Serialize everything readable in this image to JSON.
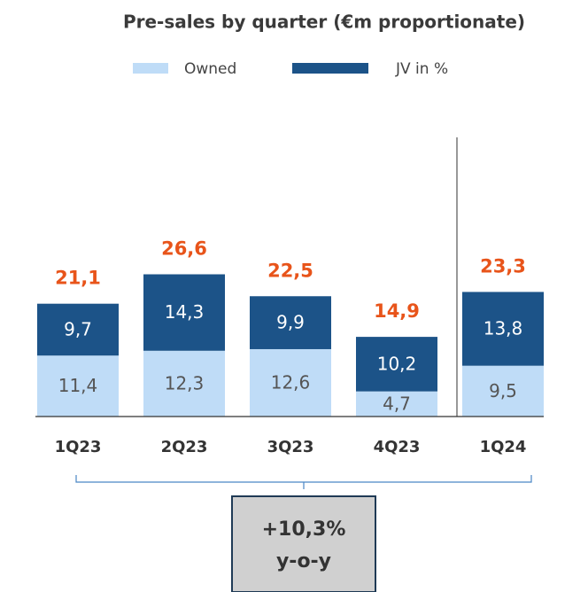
{
  "chart_data": {
    "type": "stacked_bar",
    "title": "Pre-sales by quarter (€m proportionate)",
    "categories": [
      "1Q23",
      "2Q23",
      "3Q23",
      "4Q23",
      "1Q24"
    ],
    "series": [
      {
        "name": "Owned",
        "color": "#bfdcf7",
        "values": [
          11.4,
          12.3,
          12.6,
          4.7,
          9.5
        ],
        "value_labels": [
          "11,4",
          "12,3",
          "12,6",
          "4,7",
          "9,5"
        ]
      },
      {
        "name": "JV in %",
        "color": "#1c5388",
        "values": [
          9.7,
          14.3,
          9.9,
          10.2,
          13.8
        ],
        "value_labels": [
          "9,7",
          "14,3",
          "9,9",
          "10,2",
          "13,8"
        ]
      }
    ],
    "totals": [
      21.1,
      26.6,
      22.5,
      14.9,
      23.3
    ],
    "total_labels": [
      "21,1",
      "26,6",
      "22,5",
      "14,9",
      "23,3"
    ],
    "total_color": "#e8541a",
    "ylim": [
      0,
      30
    ],
    "annotation": [
      "+10,3%",
      "y-o-y"
    ]
  }
}
